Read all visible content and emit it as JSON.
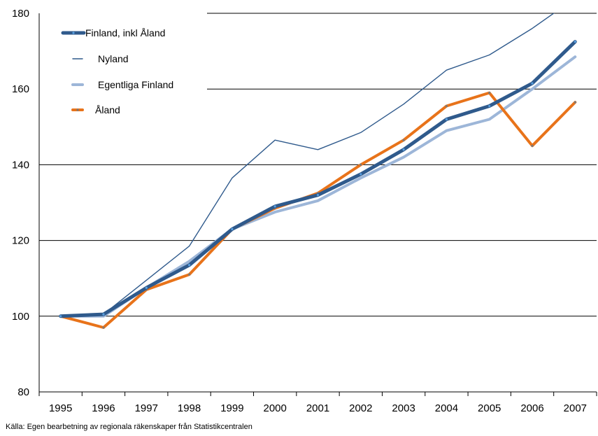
{
  "chart_data": {
    "type": "line",
    "x": [
      "1995",
      "1996",
      "1997",
      "1998",
      "1999",
      "2000",
      "2001",
      "2002",
      "2003",
      "2004",
      "2005",
      "2006",
      "2007"
    ],
    "ylim": [
      80,
      180
    ],
    "yticks": [
      80,
      100,
      120,
      140,
      160,
      180
    ],
    "grid": true,
    "legend_position": "top-left",
    "series": [
      {
        "name": "Finland, inkl Åland",
        "color": "#2F5A8C",
        "values": [
          100,
          100.5,
          107.5,
          113.5,
          123,
          129,
          132,
          137.5,
          144,
          152,
          155.5,
          161.5,
          172.5
        ]
      },
      {
        "name": "Nyland",
        "color": "#2F5A8C",
        "values": [
          100,
          100.5,
          109.5,
          118.5,
          136.5,
          146.5,
          144,
          148.5,
          156,
          165,
          169,
          176,
          184
        ]
      },
      {
        "name": "Egentliga Finland",
        "color": "#9DB6D8",
        "values": [
          100,
          100,
          107.5,
          114.5,
          123,
          127.5,
          130.5,
          136.5,
          142,
          149,
          152,
          160,
          168.5
        ]
      },
      {
        "name": "Åland",
        "color": "#E8731A",
        "values": [
          100,
          97,
          107,
          111,
          123,
          128.5,
          132.5,
          140,
          146.5,
          155.5,
          159,
          145,
          156.5
        ]
      }
    ]
  },
  "source_note": "Källa: Egen bearbetning av regionala räkenskaper från Statistikcentralen"
}
